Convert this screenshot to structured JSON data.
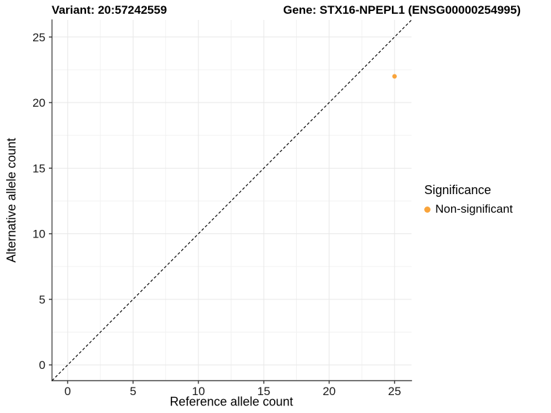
{
  "chart_data": {
    "type": "scatter",
    "title_left": "Variant: 20:57242559",
    "title_right": "Gene: STX16-NPEPL1 (ENSG00000254995)",
    "xlabel": "Reference allele count",
    "ylabel": "Alternative allele count",
    "xlim": [
      -1.2,
      26.3
    ],
    "ylim": [
      -1.2,
      26.3
    ],
    "x_ticks": [
      0,
      5,
      10,
      15,
      20,
      25
    ],
    "y_ticks": [
      0,
      5,
      10,
      15,
      20,
      25
    ],
    "minor_grid_step": 2.5,
    "grid": true,
    "points": [
      {
        "x": 25,
        "y": 22,
        "series": "Non-significant"
      }
    ],
    "reference_line": {
      "type": "identity",
      "slope": 1,
      "intercept": 0,
      "style": "dashed",
      "color": "#000000"
    },
    "legend": {
      "title": "Significance",
      "position": "right",
      "entries": [
        {
          "label": "Non-significant",
          "color": "#F9A43B"
        }
      ]
    },
    "colors": {
      "point": "#F9A43B",
      "grid_major": "#E7E7E7",
      "grid_minor": "#F2F2F2",
      "axis_line": "#474747",
      "tick_mark": "#333333",
      "tick_label": "#1A1A1A"
    }
  }
}
